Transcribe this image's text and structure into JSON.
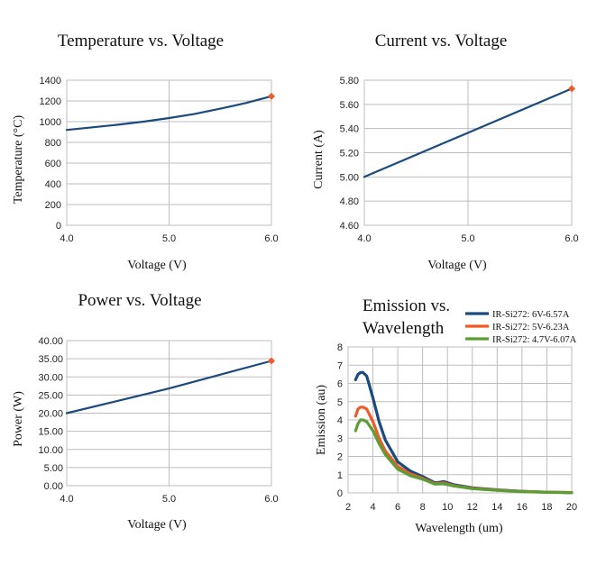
{
  "chart_data": [
    {
      "id": "temperature",
      "type": "line",
      "title": "Temperature vs. Voltage",
      "xlabel": "Voltage (V)",
      "ylabel": "Temperature (°C)",
      "xlim": [
        4.0,
        6.0
      ],
      "ylim": [
        0,
        1400
      ],
      "xticks": [
        4.0,
        5.0,
        6.0
      ],
      "yticks": [
        0,
        200,
        400,
        600,
        800,
        1000,
        1200,
        1400
      ],
      "xtick_labels": [
        "4.0",
        "5.0",
        "6.0"
      ],
      "ytick_labels": [
        "0",
        "200",
        "400",
        "600",
        "800",
        "1000",
        "1200",
        "1400"
      ],
      "series": [
        {
          "name": "Temperature",
          "color": "#1a4a7e",
          "x": [
            4.0,
            4.25,
            4.5,
            4.75,
            5.0,
            5.25,
            5.5,
            5.75,
            6.0
          ],
          "y": [
            920,
            945,
            970,
            1000,
            1035,
            1075,
            1125,
            1180,
            1245
          ]
        }
      ],
      "highlight_point": {
        "x": 6.0,
        "y": 1245,
        "color": "#f05a28"
      }
    },
    {
      "id": "current",
      "type": "line",
      "title": "Current vs. Voltage",
      "xlabel": "Voltage (V)",
      "ylabel": "Current (A)",
      "xlim": [
        4.0,
        6.0
      ],
      "ylim": [
        4.6,
        5.8
      ],
      "xticks": [
        4.0,
        5.0,
        6.0
      ],
      "yticks": [
        4.6,
        4.8,
        5.0,
        5.2,
        5.4,
        5.6,
        5.8
      ],
      "xtick_labels": [
        "4.0",
        "5.0",
        "6.0"
      ],
      "ytick_labels": [
        "4.60",
        "4.80",
        "5.00",
        "5.20",
        "5.40",
        "5.60",
        "5.80"
      ],
      "series": [
        {
          "name": "Current",
          "color": "#1a4a7e",
          "x": [
            4.0,
            6.0
          ],
          "y": [
            5.0,
            5.73
          ]
        }
      ],
      "highlight_point": {
        "x": 6.0,
        "y": 5.73,
        "color": "#f05a28"
      }
    },
    {
      "id": "power",
      "type": "line",
      "title": "Power vs. Voltage",
      "xlabel": "Voltage (V)",
      "ylabel": "Power (W)",
      "xlim": [
        4.0,
        6.0
      ],
      "ylim": [
        0,
        40
      ],
      "xticks": [
        4.0,
        5.0,
        6.0
      ],
      "yticks": [
        0,
        5,
        10,
        15,
        20,
        25,
        30,
        35,
        40
      ],
      "xtick_labels": [
        "4.0",
        "5.0",
        "6.0"
      ],
      "ytick_labels": [
        "0.00",
        "5.00",
        "10.00",
        "15.00",
        "20.00",
        "25.00",
        "30.00",
        "35.00",
        "40.00"
      ],
      "series": [
        {
          "name": "Power",
          "color": "#1a4a7e",
          "x": [
            4.0,
            5.0,
            6.0
          ],
          "y": [
            20.0,
            26.8,
            34.4
          ]
        }
      ],
      "highlight_point": {
        "x": 6.0,
        "y": 34.4,
        "color": "#f05a28"
      }
    },
    {
      "id": "emission",
      "type": "line",
      "title": "Emission vs. Wavelength",
      "title_lines": [
        "Emission vs.",
        "Wavelength"
      ],
      "xlabel": "Wavelength (um)",
      "ylabel": "Emission (au)",
      "xlim": [
        2,
        20
      ],
      "ylim": [
        0,
        8
      ],
      "xticks": [
        2,
        4,
        6,
        8,
        10,
        12,
        14,
        16,
        18,
        20
      ],
      "yticks": [
        0,
        1,
        2,
        3,
        4,
        5,
        6,
        7,
        8
      ],
      "xtick_labels": [
        "2",
        "4",
        "6",
        "8",
        "10",
        "12",
        "14",
        "16",
        "18",
        "20"
      ],
      "ytick_labels": [
        "0",
        "1",
        "2",
        "3",
        "4",
        "5",
        "6",
        "7",
        "8"
      ],
      "legend_position": "top-right",
      "series": [
        {
          "name": "IR-Si272: 6V-6.57A",
          "color": "#1a4a7e",
          "x": [
            2.6,
            2.8,
            3.0,
            3.2,
            3.5,
            4.0,
            4.5,
            5.0,
            6.0,
            7.0,
            8.0,
            9.0,
            9.7,
            10.5,
            12.0,
            14.0,
            16.0,
            18.0,
            20.0
          ],
          "y": [
            6.2,
            6.5,
            6.6,
            6.6,
            6.4,
            5.2,
            3.9,
            2.9,
            1.7,
            1.2,
            0.9,
            0.55,
            0.62,
            0.45,
            0.28,
            0.17,
            0.09,
            0.04,
            0.02
          ]
        },
        {
          "name": "IR-Si272: 5V-6.23A",
          "color": "#f05a28",
          "x": [
            2.6,
            2.8,
            3.0,
            3.2,
            3.5,
            4.0,
            4.5,
            5.0,
            6.0,
            7.0,
            8.0,
            9.0,
            9.7,
            10.5,
            12.0,
            14.0,
            16.0,
            18.0,
            20.0
          ],
          "y": [
            4.2,
            4.6,
            4.7,
            4.7,
            4.6,
            3.9,
            3.0,
            2.3,
            1.45,
            1.05,
            0.8,
            0.5,
            0.55,
            0.4,
            0.25,
            0.15,
            0.08,
            0.04,
            0.02
          ]
        },
        {
          "name": "IR-Si272: 4.7V-6.07A",
          "color": "#5a9e34",
          "x": [
            2.6,
            2.8,
            3.0,
            3.2,
            3.5,
            4.0,
            4.5,
            5.0,
            6.0,
            7.0,
            8.0,
            9.0,
            9.7,
            10.5,
            12.0,
            14.0,
            16.0,
            18.0,
            20.0
          ],
          "y": [
            3.4,
            3.8,
            4.0,
            4.0,
            3.9,
            3.4,
            2.7,
            2.1,
            1.3,
            0.95,
            0.75,
            0.48,
            0.5,
            0.38,
            0.23,
            0.14,
            0.07,
            0.03,
            0.01
          ]
        }
      ]
    }
  ]
}
